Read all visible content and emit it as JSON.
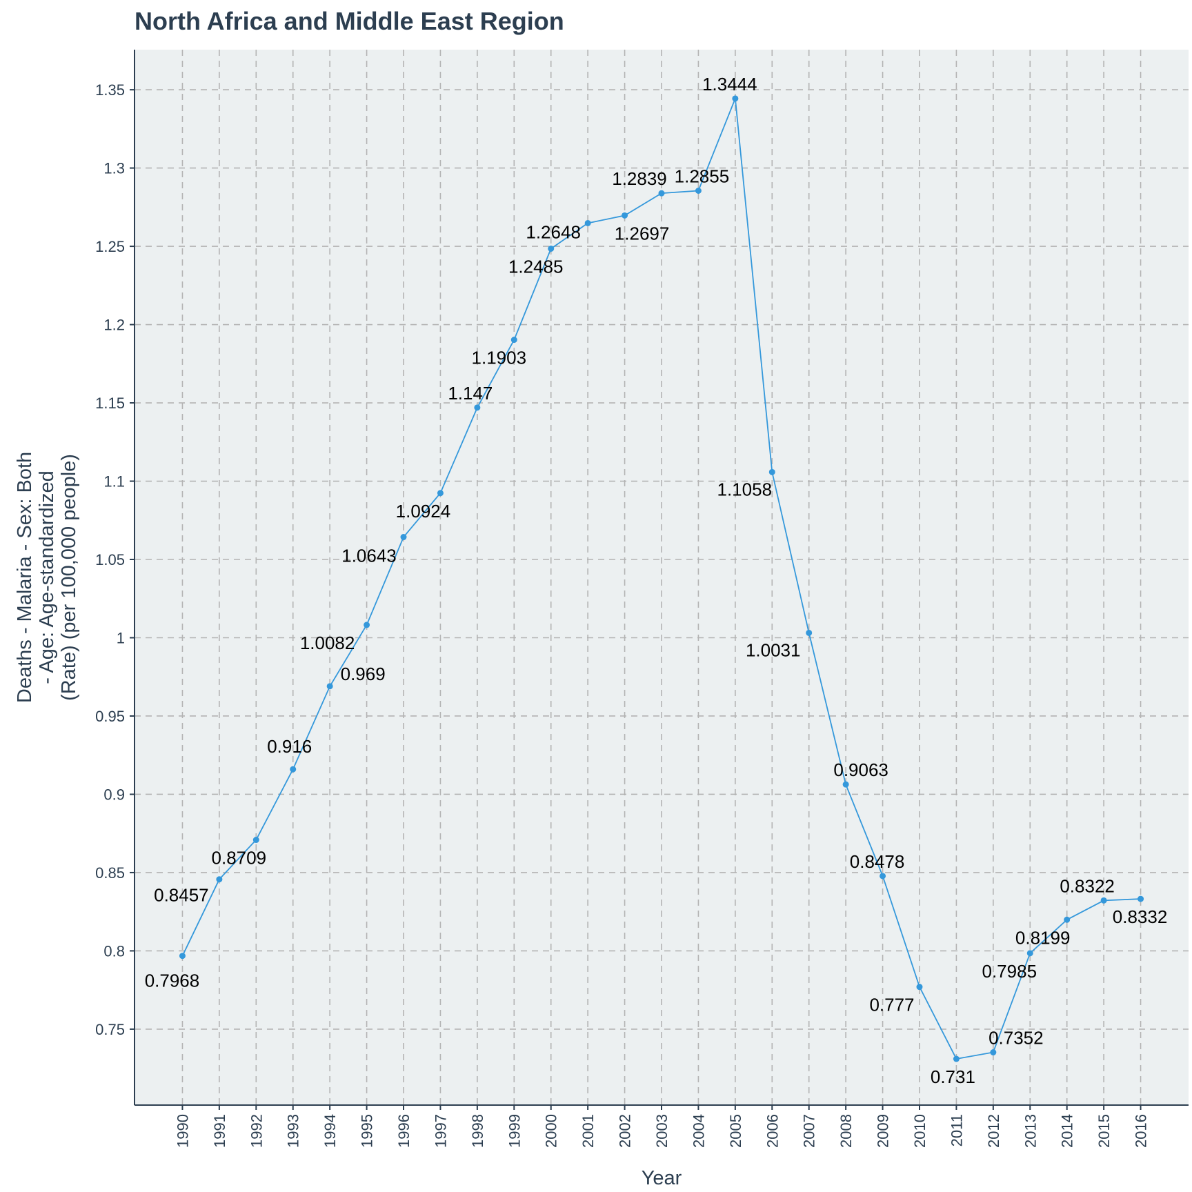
{
  "colors": {
    "panel": "#ecf0f1",
    "series": "#3498db",
    "text": "#2c3e50",
    "grid": "#b3b3b3"
  },
  "chart_data": {
    "type": "line",
    "title": "North Africa and Middle East Region",
    "xlabel": "Year",
    "ylabel_lines": [
      "Deaths - Malaria - Sex: Both",
      "- Age: Age-standardized",
      "(Rate) (per 100,000 people)"
    ],
    "x": [
      1990,
      1991,
      1992,
      1993,
      1994,
      1995,
      1996,
      1997,
      1998,
      1999,
      2000,
      2001,
      2002,
      2003,
      2004,
      2005,
      2006,
      2007,
      2008,
      2009,
      2010,
      2011,
      2012,
      2013,
      2014,
      2015,
      2016
    ],
    "series": [
      {
        "values": [
          0.7968,
          0.8457,
          0.8709,
          0.916,
          0.969,
          1.0082,
          1.0643,
          1.0924,
          1.147,
          1.1903,
          1.2485,
          1.2648,
          1.2697,
          1.2839,
          1.2855,
          1.3444,
          1.1058,
          1.0031,
          0.9063,
          0.8478,
          0.777,
          0.731,
          0.7352,
          0.7985,
          0.8199,
          0.8322,
          0.8332
        ],
        "labels": [
          "0.7968",
          "0.8457",
          "0.8709",
          "0.916",
          "0.969",
          "1.0082",
          "1.0643",
          "1.0924",
          "1.147",
          "1.1903",
          "1.2485",
          "1.2648",
          "1.2697",
          "1.2839",
          "1.2855",
          "1.3444",
          "1.1058",
          "1.0031",
          "0.9063",
          "0.8478",
          "0.777",
          "0.731",
          "0.7352",
          "0.7985",
          "0.8199",
          "0.8322",
          "0.8332"
        ]
      }
    ],
    "y_ticks": [
      0.75,
      0.8,
      0.85,
      0.9,
      0.95,
      1.0,
      1.05,
      1.1,
      1.15,
      1.2,
      1.25,
      1.3,
      1.35
    ],
    "y_tick_labels": [
      "0.75",
      "0.8",
      "0.85",
      "0.9",
      "0.95",
      "1",
      "1.05",
      "1.1",
      "1.15",
      "1.2",
      "1.25",
      "1.3",
      "1.35"
    ],
    "x_tick_labels": [
      "1990",
      "1991",
      "1992",
      "1993",
      "1994",
      "1995",
      "1996",
      "1997",
      "1998",
      "1999",
      "2000",
      "2001",
      "2002",
      "2003",
      "2004",
      "2005",
      "2006",
      "2007",
      "2008",
      "2009",
      "2010",
      "2011",
      "2012",
      "2013",
      "2014",
      "2015",
      "2016"
    ],
    "xlim": [
      1988.7,
      2017.3
    ],
    "ylim": [
      0.7015,
      1.3756
    ],
    "grid": true,
    "legend": "none"
  }
}
